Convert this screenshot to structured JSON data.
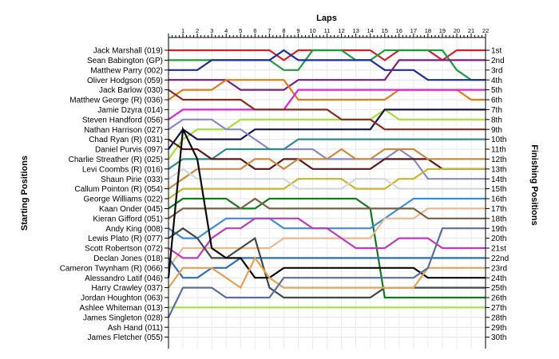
{
  "chart_data": {
    "type": "line",
    "title": "",
    "xlabel": "Laps",
    "ylabel_left": "Starting Positions",
    "ylabel_right": "Finishing Positions",
    "laps": [
      1,
      2,
      3,
      4,
      5,
      6,
      7,
      8,
      9,
      10,
      11,
      12,
      13,
      14,
      15,
      16,
      17,
      18,
      19,
      20,
      21,
      22
    ],
    "start_labels": [
      "Jack Marshall (019)",
      "Sean Babington (GP)",
      "Matthew Parry (002)",
      "Oliver Hodgson (059)",
      "Jack Barlow (030)",
      "Matthew George (R) (036)",
      "Jamie Dzyra (014)",
      "Steven Handford (056)",
      "Nathan Harrison (027)",
      "Chad Ryan (R) (031)",
      "Daniel Purvis (097)",
      "Charlie Streather (R) (025)",
      "Levi Coombs (R) (016)",
      "Shaun Pirie (033)",
      "Callum Pointon (R) (054)",
      "George Williams (022)",
      "Kaan Onder (045)",
      "Kieran Gifford (051)",
      "Andy King (008)",
      "Lewis Plato (R) (077)",
      "Scott Robertson (072)",
      "Declan Jones (018)",
      "Cameron Twynham (R) (066)",
      "Alessandro Latif (046)",
      "Harry Crawley (037)",
      "Jordan Houghton (063)",
      "Ashlee Whiteman (013)",
      "James Singleton (028)",
      "Ash Hand (011)",
      "James Fletcher (055)"
    ],
    "finish_labels": [
      "1st",
      "2nd",
      "3rd",
      "4th",
      "5th",
      "6th",
      "7th",
      "8th",
      "9th",
      "10th",
      "11th",
      "12th",
      "13th",
      "14th",
      "15th",
      "16th",
      "17th",
      "18th",
      "19th",
      "20th",
      "21st",
      "22nd",
      "23rd",
      "24th",
      "25th",
      "26th",
      "27th",
      "28th",
      "29th",
      "30th"
    ],
    "series": [
      {
        "color": "#d4202b",
        "values": [
          1,
          1,
          1,
          1,
          1,
          1,
          1,
          1,
          2,
          1,
          1,
          1,
          1,
          1,
          1,
          2,
          1,
          1,
          1,
          2,
          1,
          1,
          1
        ]
      },
      {
        "color": "#1e9c3c",
        "values": [
          2,
          2,
          2,
          2,
          2,
          2,
          2,
          2,
          3,
          3,
          1,
          1,
          1,
          2,
          2,
          1,
          1,
          1,
          1,
          1,
          3,
          4,
          4
        ]
      },
      {
        "color": "#1a2c9e",
        "values": [
          3,
          3,
          3,
          2,
          2,
          2,
          2,
          2,
          1,
          2,
          2,
          2,
          2,
          2,
          2,
          3,
          3,
          3,
          4,
          4,
          4,
          4,
          4
        ]
      },
      {
        "color": "#7a1e7e",
        "values": [
          4,
          4,
          4,
          4,
          4,
          5,
          5,
          5,
          5,
          4,
          4,
          4,
          4,
          4,
          4,
          4,
          2,
          2,
          2,
          2,
          2,
          2,
          2
        ]
      },
      {
        "color": "#e07a12",
        "values": [
          6,
          5,
          5,
          5,
          4,
          4,
          4,
          4,
          4,
          6,
          6,
          6,
          6,
          6,
          6,
          6,
          5,
          5,
          5,
          5,
          5,
          6,
          6
        ]
      },
      {
        "color": "#e020d8",
        "values": [
          8,
          7,
          7,
          7,
          7,
          7,
          7,
          7,
          7,
          5,
          5,
          5,
          5,
          5,
          5,
          5,
          5,
          5,
          5,
          5,
          5,
          5,
          5
        ]
      },
      {
        "color": "#a5e030",
        "values": [
          12,
          10,
          9,
          9,
          9,
          8,
          8,
          8,
          8,
          8,
          8,
          8,
          8,
          8,
          8,
          7,
          8,
          8,
          8,
          8,
          8,
          8,
          8
        ]
      },
      {
        "color": "#15154a",
        "values": [
          11,
          9,
          10,
          10,
          10,
          10,
          9,
          9,
          9,
          9,
          9,
          9,
          9,
          9,
          9,
          7,
          7,
          7,
          7,
          7,
          7,
          7,
          7
        ]
      },
      {
        "color": "#8b2a1c",
        "values": [
          5,
          6,
          6,
          6,
          6,
          6,
          7,
          7,
          7,
          7,
          7,
          7,
          8,
          8,
          8,
          9,
          9,
          9,
          9,
          9,
          9,
          9,
          9
        ]
      },
      {
        "color": "#8b86c8",
        "values": [
          9,
          8,
          8,
          8,
          9,
          9,
          10,
          11,
          11,
          11,
          11,
          12,
          12,
          12,
          12,
          12,
          11,
          12,
          14,
          14,
          14,
          14,
          14
        ]
      },
      {
        "color": "#2e8a88",
        "values": [
          13,
          12,
          12,
          12,
          11,
          11,
          11,
          11,
          11,
          10,
          10,
          10,
          10,
          10,
          10,
          10,
          10,
          10,
          10,
          10,
          10,
          10,
          10
        ]
      },
      {
        "color": "#5c1818",
        "values": [
          10,
          11,
          11,
          12,
          12,
          12,
          13,
          13,
          12,
          12,
          13,
          13,
          13,
          13,
          13,
          12,
          12,
          12,
          12,
          13,
          13,
          13,
          13
        ]
      },
      {
        "color": "#cc8840",
        "values": [
          15,
          14,
          13,
          13,
          13,
          13,
          12,
          12,
          13,
          12,
          12,
          12,
          11,
          12,
          12,
          11,
          11,
          11,
          12,
          12,
          12,
          12,
          12
        ]
      },
      {
        "color": "#c9b42a",
        "values": [
          16,
          15,
          15,
          15,
          15,
          15,
          15,
          15,
          15,
          14,
          14,
          14,
          14,
          15,
          15,
          15,
          14,
          14,
          13,
          13,
          13,
          13,
          13
        ]
      },
      {
        "color": "#d0d8d8",
        "values": [
          14,
          13,
          14,
          14,
          14,
          14,
          14,
          14,
          14,
          15,
          15,
          15,
          15,
          14,
          14,
          14,
          15,
          15,
          15,
          15,
          15,
          15,
          15
        ]
      },
      {
        "color": "#127a1e",
        "values": [
          17,
          16,
          16,
          16,
          16,
          17,
          17,
          16,
          16,
          16,
          16,
          16,
          16,
          16,
          17,
          26,
          26,
          26,
          26,
          26,
          26,
          26,
          26
        ]
      },
      {
        "color": "#3a8ed8",
        "values": [
          19,
          20,
          20,
          19,
          18,
          18,
          18,
          18,
          19,
          19,
          19,
          19,
          19,
          19,
          19,
          18,
          17,
          16,
          16,
          16,
          16,
          16,
          16
        ]
      },
      {
        "color": "#e8b890",
        "values": [
          23,
          21,
          21,
          21,
          21,
          21,
          21,
          21,
          20,
          20,
          20,
          20,
          20,
          20,
          20,
          18,
          18,
          18,
          17,
          17,
          17,
          17,
          17
        ]
      },
      {
        "color": "#7a6040",
        "values": [
          18,
          17,
          17,
          17,
          17,
          17,
          16,
          17,
          17,
          17,
          17,
          17,
          17,
          17,
          17,
          17,
          17,
          17,
          18,
          18,
          18,
          18,
          18
        ]
      },
      {
        "color": "#c038c0",
        "values": [
          21,
          22,
          22,
          20,
          19,
          19,
          18,
          18,
          18,
          18,
          19,
          19,
          20,
          21,
          21,
          21,
          20,
          20,
          20,
          21,
          21,
          21,
          21
        ]
      },
      {
        "color": "#2a6eb8",
        "values": [
          22,
          24,
          24,
          23,
          23,
          22,
          22,
          22,
          22,
          22,
          22,
          22,
          22,
          22,
          22,
          22,
          22,
          22,
          22,
          22,
          22,
          22,
          22
        ]
      },
      {
        "color": "#3e4a4a",
        "values": [
          20,
          19,
          20,
          22,
          22,
          21,
          20,
          25,
          26,
          26,
          26,
          26,
          26,
          26,
          26,
          25,
          25,
          25,
          25,
          25,
          25,
          25,
          25
        ]
      },
      {
        "color": "#0a0a0a",
        "values": [
          24,
          9,
          12,
          21,
          22,
          22,
          24,
          24,
          23,
          23,
          23,
          23,
          23,
          23,
          23,
          23,
          23,
          23,
          24,
          24,
          24,
          24,
          24
        ]
      },
      {
        "color": "#e8a050",
        "values": [
          25,
          23,
          23,
          23,
          24,
          25,
          22,
          24,
          25,
          25,
          25,
          25,
          25,
          25,
          25,
          25,
          25,
          25,
          23,
          23,
          23,
          23,
          23
        ]
      },
      {
        "color": "#a8e050",
        "values": [
          27,
          27,
          27,
          27,
          27,
          27,
          27,
          27,
          27,
          27,
          27,
          27,
          27,
          27,
          27,
          27,
          27,
          27,
          27,
          27,
          27,
          27,
          27
        ]
      },
      {
        "color": "#5a6ea0",
        "values": [
          28,
          25,
          25,
          25,
          26,
          26,
          26,
          26,
          24,
          24,
          24,
          24,
          24,
          24,
          24,
          24,
          24,
          24,
          23,
          19,
          19,
          19,
          19
        ]
      }
    ]
  }
}
